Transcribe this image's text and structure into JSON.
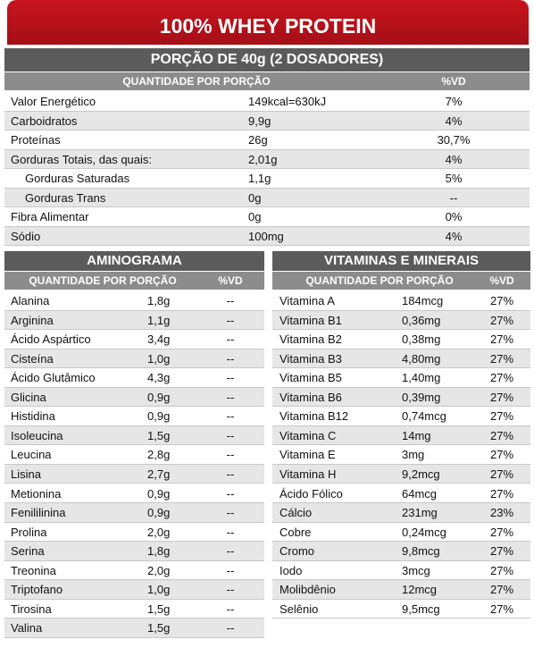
{
  "header": {
    "title": "100% WHEY PROTEIN"
  },
  "serving": {
    "title": "PORÇÃO DE 40g (2 DOSADORES)",
    "columns": [
      "QUANTIDADE POR PORÇÃO",
      "%VD"
    ],
    "rows": [
      [
        "Valor Energético",
        "149kcal=630kJ",
        "7%"
      ],
      [
        "Carboidratos",
        "9,9g",
        "4%"
      ],
      [
        "Proteínas",
        "26g",
        "30,7%"
      ],
      [
        "Gorduras Totais, das quais:",
        "2,01g",
        "4%"
      ],
      [
        "Gorduras Saturadas",
        "1,1g",
        "5%"
      ],
      [
        "Gorduras Trans",
        "0g",
        "--"
      ],
      [
        "Fibra Alimentar",
        "0g",
        "0%"
      ],
      [
        "Sódio",
        "100mg",
        "4%"
      ]
    ]
  },
  "aminogram": {
    "title": "AMINOGRAMA",
    "columns": [
      "QUANTIDADE POR PORÇÃO",
      "%VD"
    ],
    "rows": [
      [
        "Alanina",
        "1,8g",
        "--"
      ],
      [
        "Arginina",
        "1,1g",
        "--"
      ],
      [
        "Ácido Aspártico",
        "3,4g",
        "--"
      ],
      [
        "Cisteína",
        "1,0g",
        "--"
      ],
      [
        "Ácido Glutâmico",
        "4,3g",
        "--"
      ],
      [
        "Glicina",
        "0,9g",
        "--"
      ],
      [
        "Histidina",
        "0,9g",
        "--"
      ],
      [
        "Isoleucina",
        "1,5g",
        "--"
      ],
      [
        "Leucina",
        "2,8g",
        "--"
      ],
      [
        "Lisina",
        "2,7g",
        "--"
      ],
      [
        "Metionina",
        "0,9g",
        "--"
      ],
      [
        "Fenililinina",
        "0,9g",
        "--"
      ],
      [
        "Prolina",
        "2,0g",
        "--"
      ],
      [
        "Serina",
        "1,8g",
        "--"
      ],
      [
        "Treonina",
        "2,0g",
        "--"
      ],
      [
        "Triptofano",
        "1,0g",
        "--"
      ],
      [
        "Tirosina",
        "1,5g",
        "--"
      ],
      [
        "Valina",
        "1,5g",
        "--"
      ]
    ]
  },
  "vitamins": {
    "title": "VITAMINAS E MINERAIS",
    "columns": [
      "QUANTIDADE POR PORÇÃO",
      "%VD"
    ],
    "rows": [
      [
        "Vitamina A",
        "184mcg",
        "27%"
      ],
      [
        "Vitamina B1",
        "0,36mg",
        "27%"
      ],
      [
        "Vitamina B2",
        "0,38mg",
        "27%"
      ],
      [
        "Vitamina B3",
        "4,80mg",
        "27%"
      ],
      [
        "Vitamina B5",
        "1,40mg",
        "27%"
      ],
      [
        "Vitamina B6",
        "0,39mg",
        "27%"
      ],
      [
        "Vitamina B12",
        "0,74mcg",
        "27%"
      ],
      [
        "Vitamina C",
        "14mg",
        "27%"
      ],
      [
        "Vitamina E",
        "3mg",
        "27%"
      ],
      [
        "Vitamina H",
        "9,2mcg",
        "27%"
      ],
      [
        "Ácido Fólico",
        "64mcg",
        "27%"
      ],
      [
        "Cálcio",
        "231mg",
        "23%"
      ],
      [
        "Cobre",
        "0,24mcg",
        "27%"
      ],
      [
        "Cromo",
        "9,8mcg",
        "27%"
      ],
      [
        "Iodo",
        "3mcg",
        "27%"
      ],
      [
        "Molibdênio",
        "12mcg",
        "27%"
      ],
      [
        "Selênio",
        "9,5mcg",
        "27%"
      ]
    ]
  }
}
